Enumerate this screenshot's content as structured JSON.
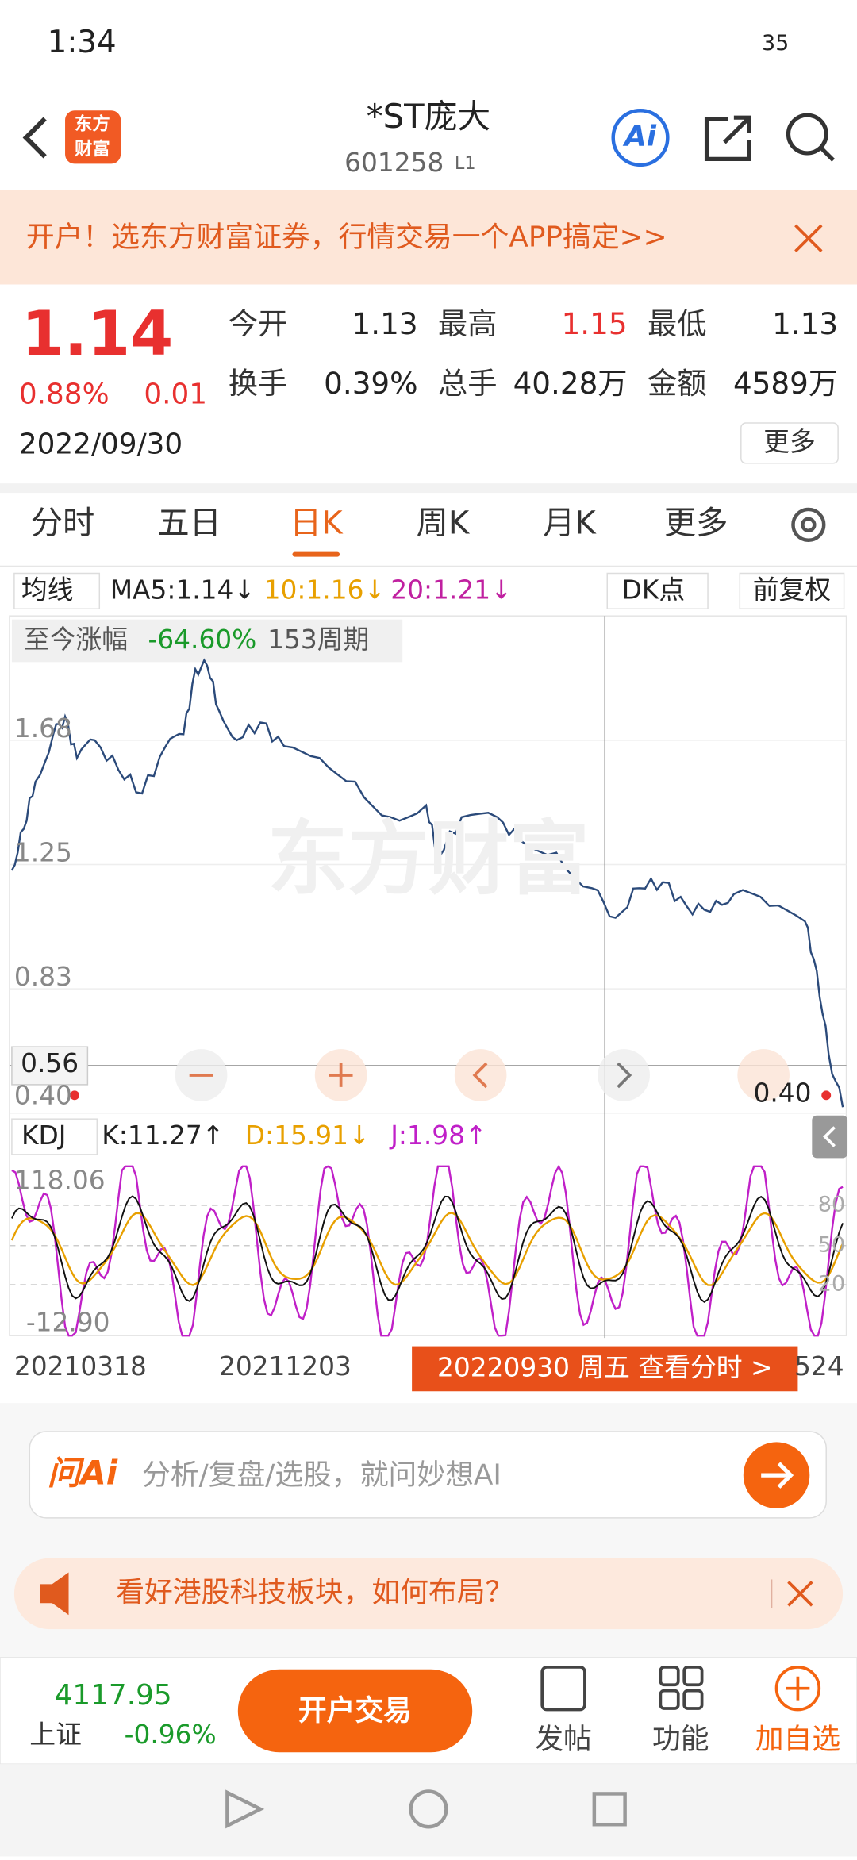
{
  "status_bar": {
    "time": "1:34",
    "battery": "35"
  },
  "header": {
    "logo": [
      "东方",
      "财富"
    ],
    "title": "*ST庞大",
    "code": "601258",
    "level": "L1",
    "ai": "Ai"
  },
  "banner": {
    "text": "开户！选东方财富证券，行情交易一个APP搞定>>"
  },
  "quote": {
    "price": "1.14",
    "change_pct": "0.88%",
    "change": "0.01",
    "date": "2022/09/30",
    "fields": [
      {
        "label": "今开",
        "value": "1.13"
      },
      {
        "label": "最高",
        "value": "1.15"
      },
      {
        "label": "最低",
        "value": "1.13"
      },
      {
        "label": "换手",
        "value": "0.39%"
      },
      {
        "label": "总手",
        "value": "40.28万"
      },
      {
        "label": "金额",
        "value": "4589万"
      }
    ],
    "more": "更多"
  },
  "tabs": [
    "分时",
    "五日",
    "日K",
    "周K",
    "月K",
    "更多"
  ],
  "chart": {
    "ma_selector": "均线",
    "ma": [
      "MA5:1.14↓",
      "10:1.16↓",
      "20:1.21↓"
    ],
    "dk": "DK点",
    "adjust": "前复权",
    "range_label": "至今涨幅",
    "range_pct": "-64.60%",
    "range_period": "153周期",
    "y_labels": [
      "1.68",
      "1.25",
      "0.83",
      "0.40"
    ],
    "crosshair_value": "0.56",
    "last_value": "0.40",
    "watermark": "东方财富"
  },
  "kdj": {
    "selector": "KDJ",
    "values": [
      "K:11.27↑",
      "D:15.91↓",
      "J:1.98↑"
    ],
    "y_labels": [
      "118.06",
      "-12.90"
    ],
    "levels": [
      "80",
      "50",
      "20"
    ]
  },
  "x_axis": {
    "labels": [
      "20210318",
      "20211203"
    ],
    "tail": "524",
    "tooltip": "20220930 周五 查看分时 >"
  },
  "ai_bar": {
    "brand": "问Ai",
    "placeholder": "分析/复盘/选股，就问妙想AI"
  },
  "news": {
    "text": "看好港股科技板块，如何布局？"
  },
  "bottom": {
    "index_value": "4117.95",
    "index_name": "上证",
    "index_change": "-0.96%",
    "trade": "开户交易",
    "nav": [
      "发帖",
      "功能",
      "加自选"
    ]
  }
}
